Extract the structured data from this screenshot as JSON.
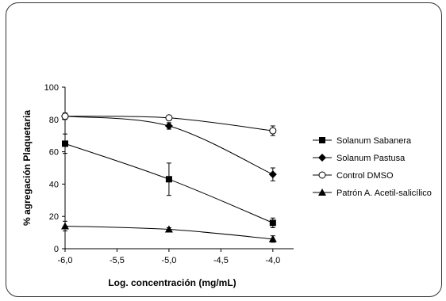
{
  "chart_data": {
    "type": "line",
    "title": "",
    "xlabel": "Log. concentración (mg/mL)",
    "ylabel": "% agregación Plaquetaria",
    "xlim": [
      -6.0,
      -3.8
    ],
    "ylim": [
      0,
      100
    ],
    "x_ticks": [
      -6.0,
      -5.5,
      -5.0,
      -4.5,
      -4.0
    ],
    "x_tick_labels": [
      "-6,0",
      "-5,5",
      "-5,0",
      "-4,5",
      "-4,0"
    ],
    "y_ticks": [
      0,
      20,
      40,
      60,
      80,
      100
    ],
    "y_tick_labels": [
      "0",
      "20",
      "40",
      "60",
      "80",
      "100"
    ],
    "grid": false,
    "legend_position": "right",
    "series": [
      {
        "name": "Solanum Sabanera",
        "marker": "square",
        "color": "#000000",
        "x": [
          -6.0,
          -5.0,
          -4.0
        ],
        "y": [
          65,
          43,
          16
        ],
        "err": [
          6,
          10,
          3
        ]
      },
      {
        "name": "Solanum Pastusa",
        "marker": "diamond",
        "color": "#000000",
        "x": [
          -6.0,
          -5.0,
          -4.0
        ],
        "y": [
          82,
          76,
          46
        ],
        "err": [
          1,
          2,
          4
        ]
      },
      {
        "name": "Control DMSO",
        "marker": "circle-open",
        "color": "#000000",
        "x": [
          -6.0,
          -5.0,
          -4.0
        ],
        "y": [
          82,
          81,
          73
        ],
        "err": [
          2,
          1,
          3
        ]
      },
      {
        "name": "Patrón A. Acetil-salicílico",
        "marker": "triangle",
        "color": "#000000",
        "x": [
          -6.0,
          -5.0,
          -4.0
        ],
        "y": [
          14,
          12,
          6
        ],
        "err": [
          3,
          1,
          2
        ]
      }
    ]
  }
}
